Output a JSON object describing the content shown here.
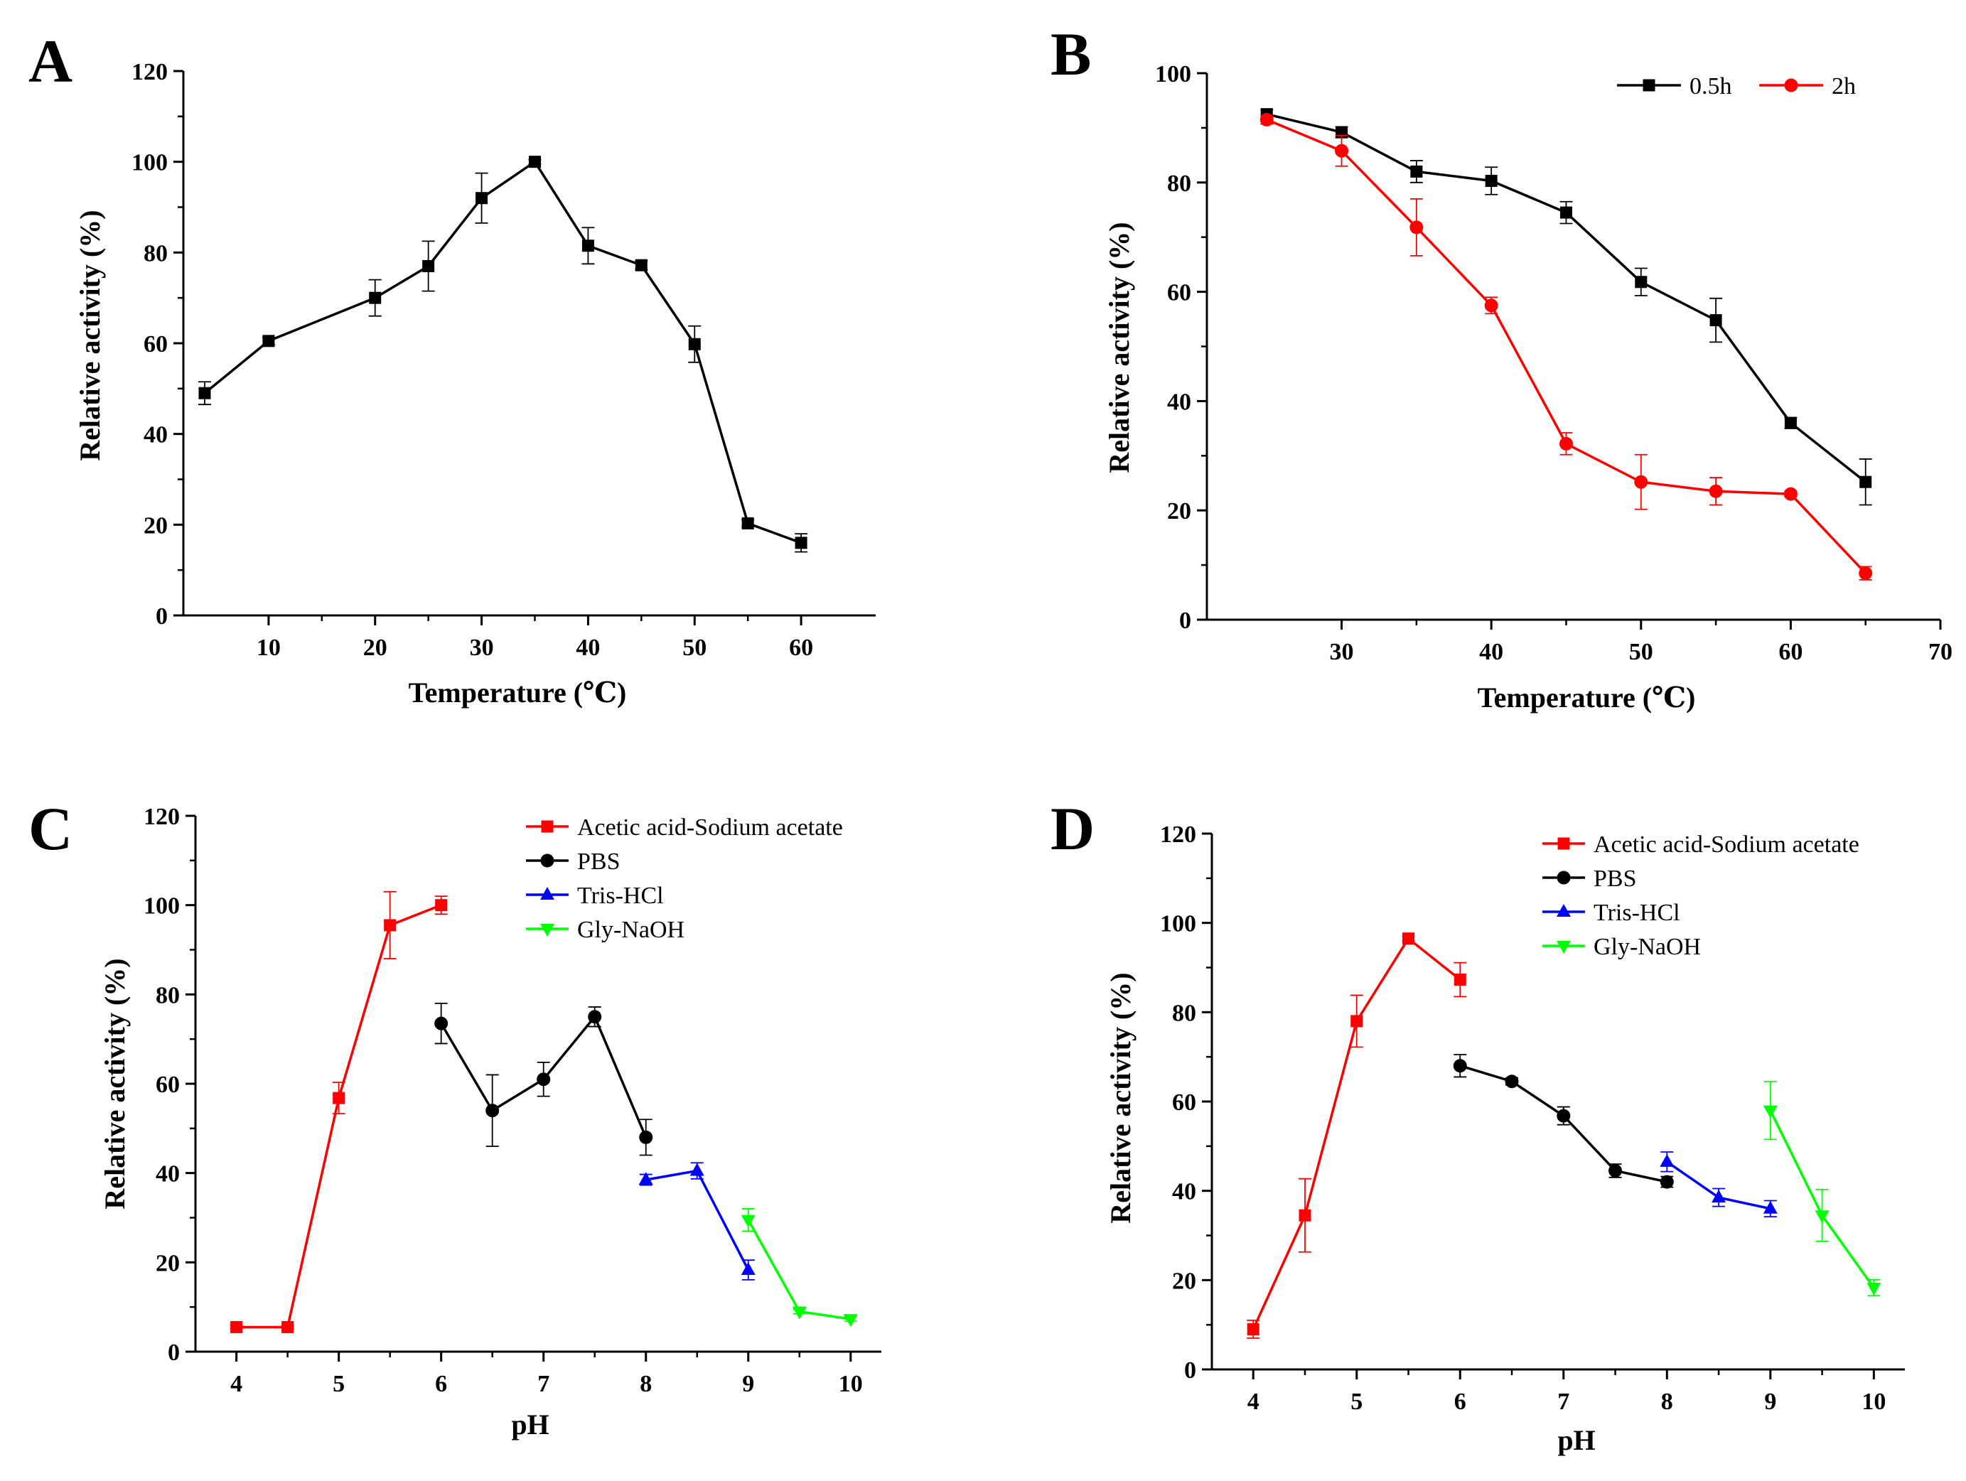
{
  "chart_data": [
    {
      "panel": "A",
      "type": "line",
      "xlabel": "Temperature (℃)",
      "ylabel": "Relative activity (%)",
      "xlim": [
        2,
        67
      ],
      "ylim": [
        0,
        120
      ],
      "xticks": [
        10,
        20,
        30,
        40,
        50,
        60
      ],
      "yticks": [
        0,
        20,
        40,
        60,
        80,
        100,
        120
      ],
      "legend": null,
      "series": [
        {
          "name": "Relative activity",
          "color": "#000000",
          "marker": "square",
          "x": [
            4,
            10,
            20,
            25,
            30,
            35,
            40,
            45,
            50,
            55,
            60
          ],
          "y": [
            49,
            60.5,
            70,
            77,
            92,
            100,
            81.5,
            77.2,
            59.8,
            20.3,
            16
          ],
          "err": [
            2.5,
            0.8,
            4,
            5.5,
            5.5,
            0.5,
            4,
            1,
            4,
            0.8,
            2
          ]
        }
      ]
    },
    {
      "panel": "B",
      "type": "line",
      "xlabel": "Temperature (℃)",
      "ylabel": "Relative activity (%)",
      "xlim": [
        21,
        70
      ],
      "ylim": [
        0,
        100
      ],
      "xticks": [
        30,
        40,
        50,
        60,
        70
      ],
      "yticks": [
        0,
        20,
        40,
        60,
        80,
        100
      ],
      "legend": "top-right-horizontal",
      "series": [
        {
          "name": "0.5h",
          "color": "#000000",
          "marker": "square",
          "x": [
            25,
            30,
            35,
            40,
            45,
            50,
            55,
            60,
            65
          ],
          "y": [
            92.5,
            89.2,
            82,
            80.3,
            74.5,
            61.8,
            54.8,
            36,
            25.2
          ],
          "err": [
            0.8,
            1,
            2,
            2.5,
            2,
            2.5,
            4,
            1,
            4.2
          ]
        },
        {
          "name": "2h",
          "color": "#ff0000",
          "marker": "circle",
          "x": [
            25,
            30,
            35,
            40,
            45,
            50,
            55,
            60,
            65
          ],
          "y": [
            91.5,
            85.8,
            71.8,
            57.5,
            32.2,
            25.2,
            23.5,
            23,
            8.5
          ],
          "err": [
            0.8,
            2.8,
            5.2,
            1.5,
            2,
            5,
            2.5,
            0.5,
            1.2
          ]
        }
      ]
    },
    {
      "panel": "C",
      "type": "line",
      "xlabel": "pH",
      "ylabel": "Relative activity (%)",
      "xlim": [
        3.6,
        10.3
      ],
      "ylim": [
        0,
        120
      ],
      "xticks": [
        4,
        5,
        6,
        7,
        8,
        9,
        10
      ],
      "yticks": [
        0,
        20,
        40,
        60,
        80,
        100,
        120
      ],
      "legend": "top-right-vertical",
      "series": [
        {
          "name": "Acetic acid-Sodium acetate",
          "color": "#ff0000",
          "marker": "square",
          "x": [
            4,
            4.5,
            5,
            5.5,
            6
          ],
          "y": [
            5.5,
            5.5,
            56.8,
            95.5,
            100
          ],
          "err": [
            0.3,
            0.3,
            3.5,
            7.5,
            2
          ]
        },
        {
          "name": "PBS",
          "color": "#000000",
          "marker": "circle",
          "x": [
            6,
            6.5,
            7,
            7.5,
            8
          ],
          "y": [
            73.5,
            54,
            61,
            75,
            48
          ],
          "err": [
            4.5,
            8,
            3.8,
            2.2,
            4
          ]
        },
        {
          "name": "Tris-HCl",
          "color": "#0000ff",
          "marker": "triangle-up",
          "x": [
            8,
            8.5,
            9
          ],
          "y": [
            38.5,
            40.5,
            18.3
          ],
          "err": [
            1.2,
            1.8,
            2.2
          ]
        },
        {
          "name": "Gly-NaOH",
          "color": "#00ff00",
          "marker": "triangle-down",
          "x": [
            9,
            9.5,
            10
          ],
          "y": [
            29.5,
            9,
            7.3
          ],
          "err": [
            2.5,
            0.5,
            0.5
          ]
        }
      ]
    },
    {
      "panel": "D",
      "type": "line",
      "xlabel": "pH",
      "ylabel": "Relative activity (%)",
      "xlim": [
        3.6,
        10.3
      ],
      "ylim": [
        0,
        120
      ],
      "xticks": [
        4,
        5,
        6,
        7,
        8,
        9,
        10
      ],
      "yticks": [
        0,
        20,
        40,
        60,
        80,
        100,
        120
      ],
      "legend": "top-right-vertical",
      "series": [
        {
          "name": "Acetic acid-Sodium acetate",
          "color": "#ff0000",
          "marker": "square",
          "x": [
            4,
            4.5,
            5,
            5.5,
            6
          ],
          "y": [
            9,
            34.5,
            78,
            96.5,
            87.3
          ],
          "err": [
            2,
            8.2,
            5.8,
            0.5,
            3.8
          ]
        },
        {
          "name": "PBS",
          "color": "#000000",
          "marker": "circle",
          "x": [
            6,
            6.5,
            7,
            7.5,
            8
          ],
          "y": [
            68,
            64.5,
            56.8,
            44.5,
            42
          ],
          "err": [
            2.5,
            0.8,
            2,
            1.5,
            1.2
          ]
        },
        {
          "name": "Tris-HCl",
          "color": "#0000ff",
          "marker": "triangle-up",
          "x": [
            8,
            8.5,
            9
          ],
          "y": [
            46.5,
            38.5,
            36
          ],
          "err": [
            2.2,
            2,
            1.8
          ]
        },
        {
          "name": "Gly-NaOH",
          "color": "#00ff00",
          "marker": "triangle-down",
          "x": [
            9,
            9.5,
            10
          ],
          "y": [
            58,
            34.5,
            18.3
          ],
          "err": [
            6.5,
            5.8,
            1.8
          ]
        }
      ]
    }
  ]
}
